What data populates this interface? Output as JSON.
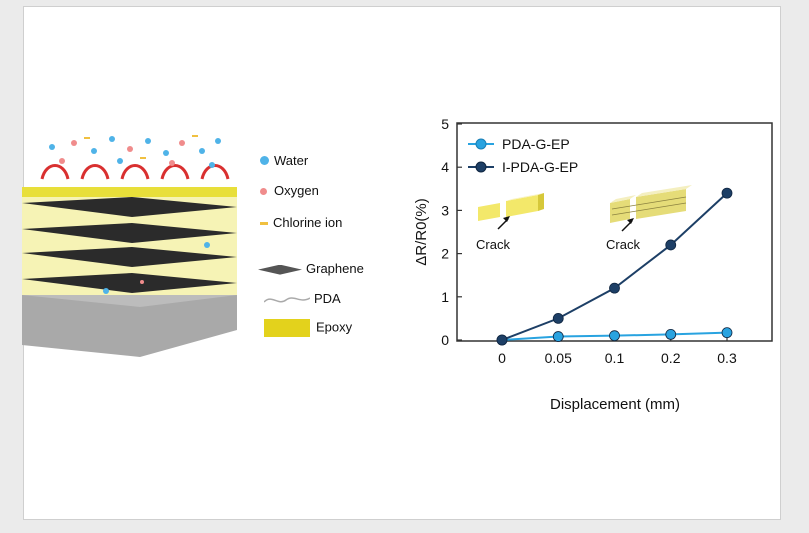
{
  "illustration": {
    "legend": [
      {
        "key": "water",
        "label": "Water",
        "color": "#4fb3e8"
      },
      {
        "key": "oxygen",
        "label": "Oxygen",
        "color": "#f08c8c"
      },
      {
        "key": "chlorine",
        "label": "Chlorine ion",
        "color": "#f0c040"
      },
      {
        "key": "graphene",
        "label": "Graphene",
        "color": "#555555"
      },
      {
        "key": "pda",
        "label": "PDA",
        "color": "#aaaaaa"
      },
      {
        "key": "epoxy",
        "label": "Epoxy",
        "color": "#e3d21c"
      }
    ]
  },
  "chart_data": {
    "type": "line",
    "categories": [
      "0",
      "0.05",
      "0.1",
      "0.2",
      "0.3"
    ],
    "series": [
      {
        "name": "PDA-G-EP",
        "values": [
          0,
          0.08,
          0.1,
          0.13,
          0.17
        ],
        "color": "#29a3e0"
      },
      {
        "name": "I-PDA-G-EP",
        "values": [
          0,
          0.5,
          1.2,
          2.2,
          3.4
        ],
        "color": "#1d3f66"
      }
    ],
    "xlabel": "Displacement (mm)",
    "ylabel": "ΔR/R0(%)",
    "ylim": [
      0,
      5
    ],
    "yticks": [
      "0",
      "1",
      "2",
      "3",
      "4",
      "5"
    ],
    "legend_position": "top-left",
    "annotations": [
      "Crack",
      "Crack"
    ]
  }
}
